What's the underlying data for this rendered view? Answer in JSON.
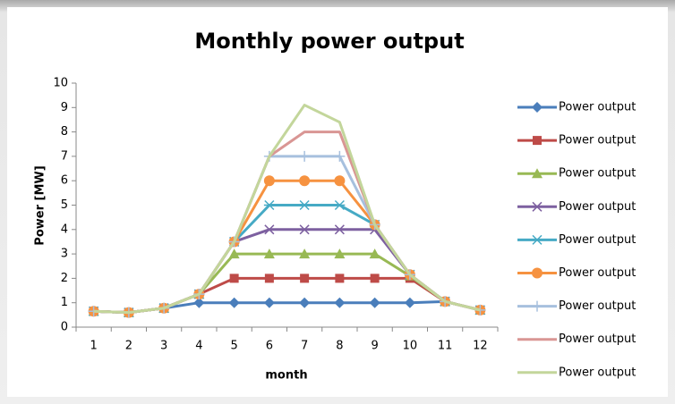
{
  "chart_data": {
    "type": "line",
    "title": "Monthly power output",
    "xlabel": "month",
    "ylabel": "Power [MW]",
    "categories": [
      1,
      2,
      3,
      4,
      5,
      6,
      7,
      8,
      9,
      10,
      11,
      12
    ],
    "ylim": [
      0,
      10
    ],
    "yticks": [
      0,
      1,
      2,
      3,
      4,
      5,
      6,
      7,
      8,
      9,
      10
    ],
    "series": [
      {
        "name": "Power output",
        "color": "#4a7ebb",
        "marker": "diamond",
        "values": [
          0.65,
          0.6,
          0.78,
          1,
          1,
          1,
          1,
          1,
          1,
          1,
          1.05,
          0.7
        ]
      },
      {
        "name": "Power output",
        "color": "#be4b48",
        "marker": "square",
        "values": [
          0.65,
          0.6,
          0.78,
          1.35,
          2,
          2,
          2,
          2,
          2,
          2,
          1.05,
          0.7
        ]
      },
      {
        "name": "Power output",
        "color": "#98b954",
        "marker": "triangle",
        "values": [
          0.65,
          0.6,
          0.78,
          1.35,
          3,
          3,
          3,
          3,
          3,
          2.1,
          1.05,
          0.7
        ]
      },
      {
        "name": "Power output",
        "color": "#7d60a0",
        "marker": "x",
        "values": [
          0.65,
          0.6,
          0.78,
          1.35,
          3.5,
          4,
          4,
          4,
          4,
          2.15,
          1.05,
          0.7
        ]
      },
      {
        "name": "Power output",
        "color": "#46aac5",
        "marker": "star",
        "values": [
          0.65,
          0.6,
          0.78,
          1.35,
          3.5,
          5,
          5,
          5,
          4.2,
          2.15,
          1.05,
          0.7
        ]
      },
      {
        "name": "Power output",
        "color": "#f69240",
        "marker": "circle",
        "values": [
          0.65,
          0.6,
          0.78,
          1.35,
          3.5,
          6,
          6,
          6,
          4.2,
          2.15,
          1.05,
          0.7
        ]
      },
      {
        "name": "Power output",
        "color": "#a7c0de",
        "marker": "plus",
        "values": [
          0.65,
          0.6,
          0.78,
          1.35,
          3.5,
          7,
          7,
          7,
          4.2,
          2.15,
          1.05,
          0.7
        ]
      },
      {
        "name": "Power output",
        "color": "#d99694",
        "marker": "none",
        "values": [
          0.65,
          0.6,
          0.78,
          1.35,
          3.5,
          7,
          8,
          8,
          4.2,
          2.15,
          1.05,
          0.7
        ]
      },
      {
        "name": "Power output",
        "color": "#c3d69b",
        "marker": "none",
        "values": [
          0.65,
          0.6,
          0.78,
          1.35,
          3.5,
          7,
          9.1,
          8.4,
          4.2,
          2.15,
          1.05,
          0.7
        ]
      }
    ]
  }
}
